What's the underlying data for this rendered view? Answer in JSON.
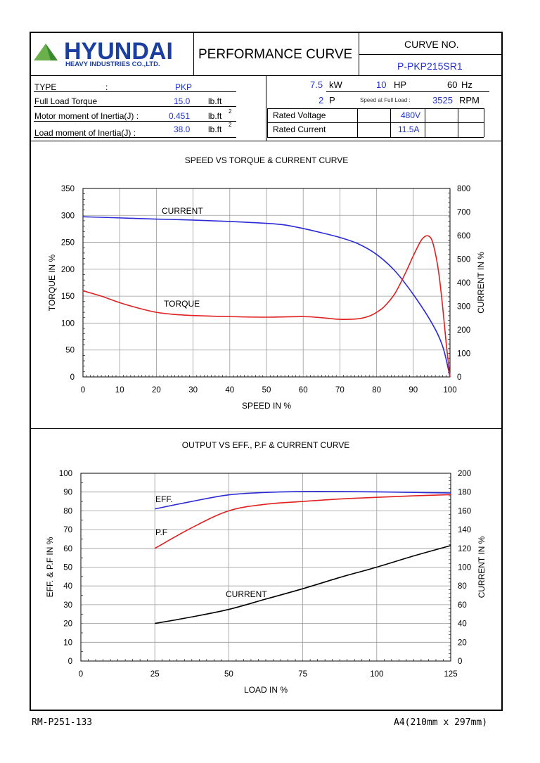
{
  "header": {
    "company": "HYUNDAI",
    "company_sub": "HEAVY INDUSTRIES CO.,LTD.",
    "title": "PERFORMANCE CURVE",
    "curve_no_label": "CURVE NO.",
    "curve_no": "P-PKP215SR1"
  },
  "specs": {
    "type_label": "TYPE",
    "type_colon": ":",
    "type_value": "PKP",
    "flt_label": "Full Load Torque",
    "flt_value": "15.0",
    "flt_unit": "lb.ft",
    "mmi_label": "Motor moment of Inertia(J) :",
    "mmi_value": "0.451",
    "mmi_unit": "lb.ft",
    "lmi_label": "Load moment of Inertia(J) :",
    "lmi_value": "38.0",
    "lmi_unit": "lb.ft",
    "sup2": "2",
    "kw_value": "7.5",
    "kw_unit": "kW",
    "hp_value": "10",
    "hp_unit": "HP",
    "hz_value": "60",
    "hz_unit": "Hz",
    "poles_value": "2",
    "poles_unit": "P",
    "speed_label": "Speed at Full Load :",
    "rpm_value": "3525",
    "rpm_unit": "RPM",
    "rv_label": "Rated Voltage",
    "rv_value": "480V",
    "rc_label": "Rated Current",
    "rc_value": "11.5A"
  },
  "footer": {
    "left": "RM-P251-133",
    "right": "A4(210mm x 297mm)"
  },
  "colors": {
    "current1": "#2b2bd6",
    "torque": "#e02020",
    "eff": "#2b2bd6",
    "pf": "#e02020",
    "current2": "#000000"
  },
  "chart_data": [
    {
      "type": "line",
      "title": "SPEED VS TORQUE & CURRENT CURVE",
      "xlabel": "SPEED IN %",
      "ylabel": "TORQUE IN %",
      "y2label": "CURRENT IN %",
      "xlim": [
        0,
        100
      ],
      "ylim": [
        0,
        350
      ],
      "y2lim": [
        0,
        800
      ],
      "xticks": [
        0,
        10,
        20,
        30,
        40,
        50,
        60,
        70,
        80,
        90,
        100
      ],
      "yticks": [
        0,
        50,
        100,
        150,
        200,
        250,
        300,
        350
      ],
      "y2ticks": [
        0,
        100,
        200,
        300,
        400,
        500,
        600,
        700,
        800
      ],
      "grid": true,
      "series": [
        {
          "name": "CURRENT",
          "axis": "y2",
          "x": [
            0,
            10,
            20,
            30,
            40,
            50,
            55,
            60,
            65,
            70,
            75,
            80,
            85,
            90,
            95,
            98,
            100
          ],
          "y": [
            680,
            675,
            670,
            666,
            660,
            652,
            645,
            630,
            612,
            592,
            565,
            520,
            450,
            350,
            230,
            130,
            0
          ]
        },
        {
          "name": "TORQUE",
          "axis": "y",
          "x": [
            0,
            5,
            10,
            15,
            20,
            25,
            30,
            40,
            50,
            60,
            65,
            70,
            75,
            78,
            80,
            82,
            85,
            88,
            90,
            92,
            93,
            94,
            95,
            96,
            97,
            98,
            99,
            100
          ],
          "y": [
            160,
            150,
            138,
            128,
            120,
            116,
            114,
            112,
            111,
            112,
            110,
            107,
            108,
            113,
            120,
            130,
            155,
            195,
            225,
            252,
            260,
            262,
            255,
            230,
            190,
            130,
            60,
            0
          ]
        }
      ]
    },
    {
      "type": "line",
      "title": "OUTPUT VS EFF., P.F & CURRENT CURVE",
      "xlabel": "LOAD IN %",
      "ylabel": "EFF. & P.F IN %",
      "y2label": "CURRENT IN %",
      "xlim": [
        0,
        125
      ],
      "ylim": [
        0,
        100
      ],
      "y2lim": [
        0,
        200
      ],
      "xticks": [
        0,
        25,
        50,
        75,
        100,
        125
      ],
      "yticks": [
        0,
        10,
        20,
        30,
        40,
        50,
        60,
        70,
        80,
        90,
        100
      ],
      "y2ticks": [
        0,
        20,
        40,
        60,
        80,
        100,
        120,
        140,
        160,
        180,
        200
      ],
      "grid": true,
      "series": [
        {
          "name": "EFF.",
          "axis": "y",
          "x": [
            25,
            37.5,
            50,
            62.5,
            75,
            87.5,
            100,
            112.5,
            125
          ],
          "y": [
            81,
            85,
            88.5,
            89.8,
            90.3,
            90.3,
            90.1,
            89.8,
            89.5
          ]
        },
        {
          "name": "P.F",
          "axis": "y",
          "x": [
            25,
            37.5,
            50,
            62.5,
            75,
            87.5,
            100,
            112.5,
            125
          ],
          "y": [
            60,
            71,
            80,
            83.5,
            85,
            86.3,
            87.2,
            88,
            88.6
          ]
        },
        {
          "name": "CURRENT",
          "axis": "y2",
          "x": [
            25,
            37.5,
            50,
            62.5,
            75,
            87.5,
            100,
            112.5,
            125
          ],
          "y": [
            40,
            47,
            55,
            66,
            77,
            89,
            100,
            112,
            123
          ]
        }
      ]
    }
  ]
}
